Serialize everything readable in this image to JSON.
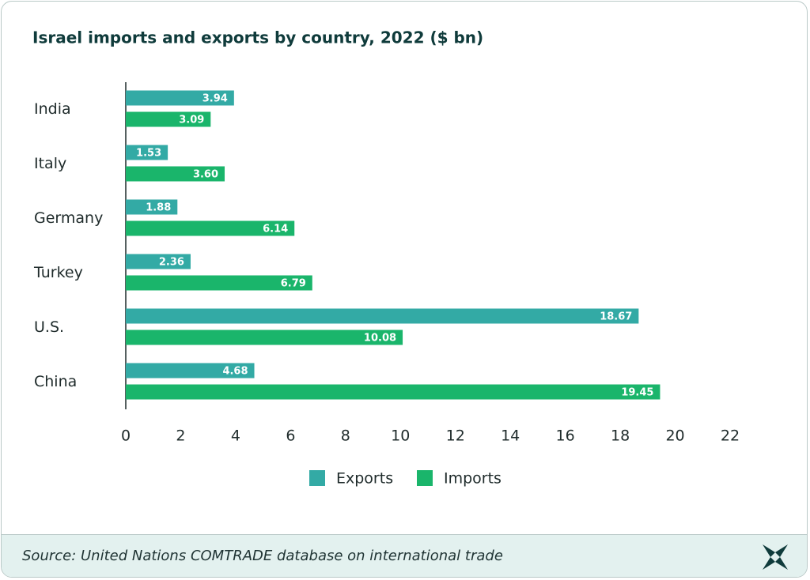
{
  "chart_data": {
    "type": "bar",
    "orientation": "horizontal",
    "title": "Israel imports and exports by country, 2022 ($ bn)",
    "categories": [
      "India",
      "Italy",
      "Germany",
      "Turkey",
      "U.S.",
      "China"
    ],
    "series": [
      {
        "name": "Exports",
        "color": "#33aaa5",
        "values": [
          3.94,
          1.53,
          1.88,
          2.36,
          18.67,
          4.68
        ],
        "value_labels": [
          "3.94",
          "1.53",
          "1.88",
          "2.36",
          "18.67",
          "4.68"
        ]
      },
      {
        "name": "Imports",
        "color": "#1ab56b",
        "values": [
          3.09,
          3.6,
          6.14,
          6.79,
          10.08,
          19.45
        ],
        "value_labels": [
          "3.09",
          "3.60",
          "6.14",
          "6.79",
          "10.08",
          "19.45"
        ]
      }
    ],
    "xlim": [
      0,
      22
    ],
    "xticks": [
      0,
      2,
      4,
      6,
      8,
      10,
      12,
      14,
      16,
      18,
      20,
      22
    ],
    "legend": "bottom"
  },
  "source": "Source: United Nations COMTRADE database on international trade"
}
